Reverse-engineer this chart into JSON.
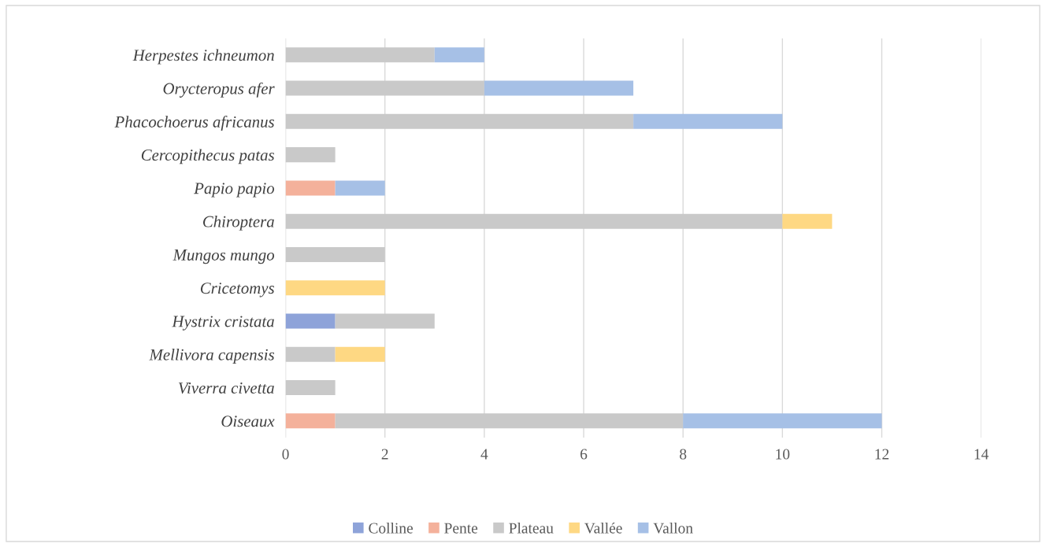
{
  "chart_data": {
    "type": "bar",
    "orientation": "horizontal",
    "stacked": true,
    "categories": [
      "Herpestes ichneumon",
      "Orycteropus afer",
      "Phacochoerus africanus",
      "Cercopithecus patas",
      "Papio papio",
      "Chiroptera",
      "Mungos mungo",
      "Cricetomys",
      "Hystrix cristata",
      "Mellivora capensis",
      "Viverra civetta",
      "Oiseaux"
    ],
    "series": [
      {
        "name": "Colline",
        "color": "#8ea3d9",
        "values": [
          0,
          0,
          0,
          0,
          0,
          0,
          0,
          0,
          1,
          0,
          0,
          0
        ]
      },
      {
        "name": "Pente",
        "color": "#f4b19b",
        "values": [
          0,
          0,
          0,
          0,
          1,
          0,
          0,
          0,
          0,
          0,
          0,
          1
        ]
      },
      {
        "name": "Plateau",
        "color": "#c9c9c9",
        "values": [
          3,
          4,
          7,
          1,
          0,
          10,
          2,
          0,
          2,
          1,
          1,
          7
        ]
      },
      {
        "name": "Vallée",
        "color": "#fed883",
        "values": [
          0,
          0,
          0,
          0,
          0,
          1,
          0,
          2,
          0,
          1,
          0,
          0
        ]
      },
      {
        "name": "Vallon",
        "color": "#a6c0e6",
        "values": [
          1,
          3,
          3,
          0,
          1,
          0,
          0,
          0,
          0,
          0,
          0,
          4
        ]
      }
    ],
    "xlim": [
      0,
      14
    ],
    "xticks": [
      0,
      2,
      4,
      6,
      8,
      10,
      12,
      14
    ],
    "grid": "x",
    "legend": "bottom"
  }
}
